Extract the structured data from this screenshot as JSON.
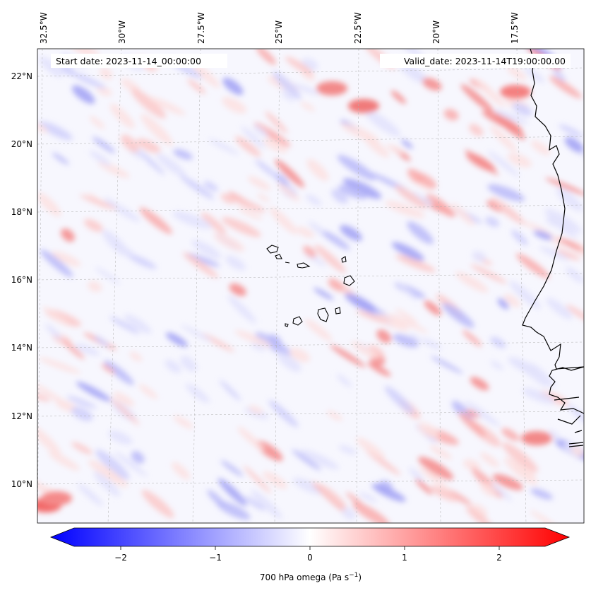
{
  "header": {
    "start_date": "Start date: 2023-11-14_00:00:00",
    "valid_date": "Valid_date: 2023-11-14T19:00:00.00"
  },
  "map": {
    "lon_labels": [
      "32.5°W",
      "30°W",
      "27.5°W",
      "25°W",
      "22.5°W",
      "20°W",
      "17.5°W"
    ],
    "lat_labels": [
      "22°N",
      "20°N",
      "18°N",
      "16°N",
      "14°N",
      "12°N",
      "10°N"
    ],
    "gridlines": true,
    "coastline_color": "#000000"
  },
  "colorbar": {
    "label": "700 hPa omega (Pa s",
    "label_sup": "−1",
    "label_close": ")",
    "ticks": [
      "−2",
      "−1",
      "0",
      "1",
      "2"
    ],
    "min_color": "#0000ff",
    "mid_color": "#ffffff",
    "max_color": "#ff0000"
  }
}
